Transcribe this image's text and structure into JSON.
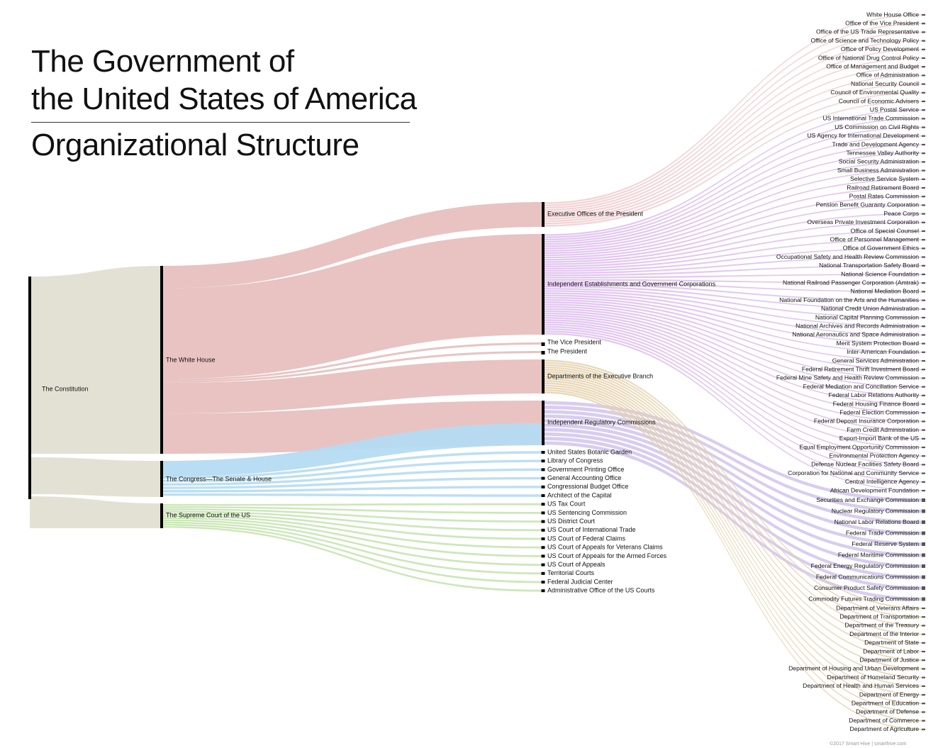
{
  "title": {
    "line1": "The Government of",
    "line2": "the United States of America",
    "line3": "Organizational Structure"
  },
  "credit": "©2017 Smart Hive | smarthive.com",
  "colors": {
    "constitution": "#e3e1d4",
    "white_house": "#e8c3c2",
    "congress": "#b5dbf2",
    "supreme_court": "#c9e6b5",
    "eop_branch": "#f2cfd2",
    "independent_establishments": "#e0c2ee",
    "executive_departments": "#e4d0a8",
    "regulatory": "#cbbce9",
    "bar": "#000000"
  },
  "root": {
    "label": "The Constitution"
  },
  "branches": [
    {
      "id": "wh",
      "label": "The White House"
    },
    {
      "id": "cg",
      "label": "The Congress—The Senate & House"
    },
    {
      "id": "sc",
      "label": "The Supreme Court of the US"
    }
  ],
  "white_house_children": [
    {
      "id": "eop",
      "label": "Executive Offices of the President"
    },
    {
      "id": "ie",
      "label": "Independent Establishments and Government Corporations"
    },
    {
      "id": "vp",
      "label": "The Vice President"
    },
    {
      "id": "pr",
      "label": "The President"
    },
    {
      "id": "dep",
      "label": "Departments of the Executive Branch"
    },
    {
      "id": "irc",
      "label": "Independent Regulatory Commissions"
    }
  ],
  "congress_agencies": [
    "United States Botanic Garden",
    "Library of Congress",
    "Government Printing Office",
    "General Accounting Office",
    "Congressional Budget Office",
    "Architect of the Capital"
  ],
  "court_agencies": [
    "US Tax Court",
    "US Sentencing Commission",
    "US District Court",
    "US Court of International Trade",
    "US Court of Federal Claims",
    "US Court of Appeals for Veterans Claims",
    "US Court of Appeals for the Armed Forces",
    "US Court of Appeals",
    "Territorial Courts",
    "Federal Judicial Center",
    "Administrative Office of the US Courts"
  ],
  "eop_agencies": [
    "White House Office",
    "Office of the Vice President",
    "Office of the US Trade Representative",
    "Office of Science and Technology Policy",
    "Office of Policy Development",
    "Office of National Drug Control Policy",
    "Office of Management and Budget",
    "Office of Administration",
    "National Security Council",
    "Council of Environmental Quality",
    "Council of Economic Advisers"
  ],
  "independent_agencies": [
    "US Postal Service",
    "US International Trade Commission",
    "US Commission on Civil Rights",
    "US Agency for International Development",
    "Trade and Development Agency",
    "Tennessee Valley Authority",
    "Social Security Administration",
    "Small Business Administration",
    "Selective Service System",
    "Railroad Retirement Board",
    "Postal Rates Commission",
    "Pension Benefit Guaranty Corporation",
    "Peace Corps",
    "Overseas Private Investment Corporation",
    "Office of Special Counsel",
    "Office of Personnel Management",
    "Office of Government Ethics",
    "Occupational Safety and Health Review Commission",
    "National Transportation Safety Board",
    "National Science Foundation",
    "National Railroad Passenger Corporation (Amtrak)",
    "National Mediation Board",
    "National Foundation on the Arts and the Humanities",
    "National Credit Union Administration",
    "National Capital Planning Commission",
    "National Archives and Records Administration",
    "National Aeronautics and Space Administration",
    "Merit System Protection Board",
    "Inter-American Foundation",
    "General Services Administration",
    "Federal Retirement Thrift Investment Board",
    "Federal Mine Safety and Health Review Commission",
    "Federal Mediation and Conciliation Service",
    "Federal Labor Relations Authority",
    "Federal Housing Finance Board",
    "Federal Election Commission",
    "Federal Deposit Insurance Corporation",
    "Farm Credit Administration",
    "Export-Import Bank of the US",
    "Equal Employment Opportunity Commission",
    "Environmental Protection Agency",
    "Defense Nuclear Facilities Safety Board",
    "Corporation for National and Community Service",
    "Central Intelligence Agency",
    "African Development Foundation"
  ],
  "regulatory_agencies": [
    "Securities and Exchange Commission",
    "Nuclear Regulatory Commission",
    "National Labor Relations Board",
    "Federal Trade Commission",
    "Federal Reserve System",
    "Federal Maritime Commission",
    "Federal Energy Regulatory Commission",
    "Federal Communications Commission",
    "Consumer Product Safety Commission",
    "Commodity Futures Trading Commission"
  ],
  "departments": [
    "Department of Veterans Affairs",
    "Department of Transportation",
    "Department of the Treasury",
    "Department of the Interior",
    "Department of State",
    "Department of Labor",
    "Department of Justice",
    "Department of Housing and Urban Development",
    "Department of Homeland Security",
    "Department of Health and Human Services",
    "Department of Energy",
    "Department of Education",
    "Department of Defense",
    "Department of Commerce",
    "Department of Agriculture"
  ]
}
